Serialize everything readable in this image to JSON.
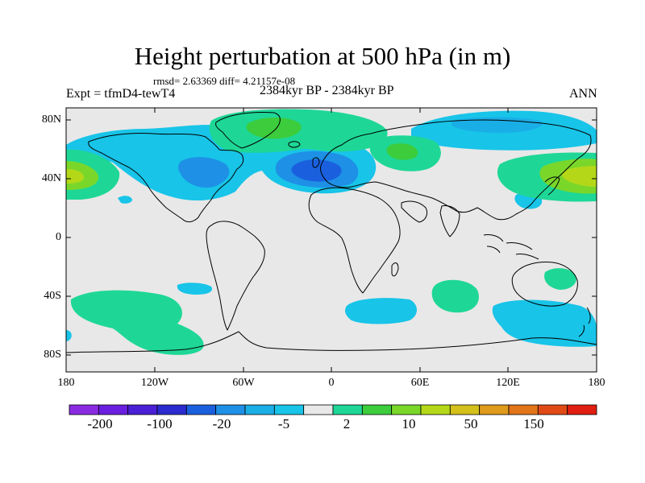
{
  "title": "Height perturbation at 500 hPa (in m)",
  "stats_text": "rmsd= 2.63369 diff= 4.21157e-08",
  "experiment": "Expt = tfmD4-tewT4",
  "period": "2384kyr BP - 2384kyr BP",
  "season": "ANN",
  "lat_ticks": [
    "80N",
    "40N",
    "0",
    "40S",
    "80S"
  ],
  "lon_ticks": [
    "180",
    "120W",
    "60W",
    "0",
    "60E",
    "120E",
    "180"
  ],
  "colorbar": {
    "colors": [
      "#8a2be2",
      "#6a1fe0",
      "#4b1fd6",
      "#2b2bd0",
      "#1a60de",
      "#1e90e6",
      "#1aaee6",
      "#18c4e8",
      "#e8e8e8",
      "#1ed796",
      "#3ccc3c",
      "#7ad72a",
      "#b4d818",
      "#d4c01a",
      "#e09a1c",
      "#e2741a",
      "#e04a16",
      "#e01e12"
    ],
    "labels": [
      "-200",
      "-100",
      "-20",
      "-5",
      "2",
      "10",
      "50",
      "150"
    ]
  },
  "chart_data": {
    "type": "heatmap",
    "title": "Height perturbation at 500 hPa (in m)",
    "projection": "cylindrical equidistant",
    "units": "m",
    "lon_range": [
      -180,
      180
    ],
    "lat_range": [
      -90,
      90
    ],
    "contour_levels": [
      "-200",
      "-100",
      "-20",
      "-5",
      "2",
      "10",
      "50",
      "150"
    ],
    "features": [
      {
        "name": "North Atlantic low",
        "center_lon": -18,
        "center_lat": 47,
        "level": "-20 to -5"
      },
      {
        "name": "North Pacific high (west)",
        "center_lon": 168,
        "center_lat": 42,
        "level": "10 to 50"
      },
      {
        "name": "North Pacific high (east edge)",
        "center_lon": -172,
        "center_lat": 42,
        "level": "10 to 50"
      },
      {
        "name": "Greenland high",
        "center_lon": -35,
        "center_lat": 75,
        "level": "2 to 10"
      },
      {
        "name": "Siberian low",
        "center_lon": 95,
        "center_lat": 75,
        "level": "-5 to -20"
      },
      {
        "name": "Southern Pacific high",
        "center_lon": -140,
        "center_lat": -55,
        "level": "2 to 10"
      },
      {
        "name": "Southern Indian low",
        "center_lon": 135,
        "center_lat": -57,
        "level": "-5 to 2"
      }
    ]
  }
}
